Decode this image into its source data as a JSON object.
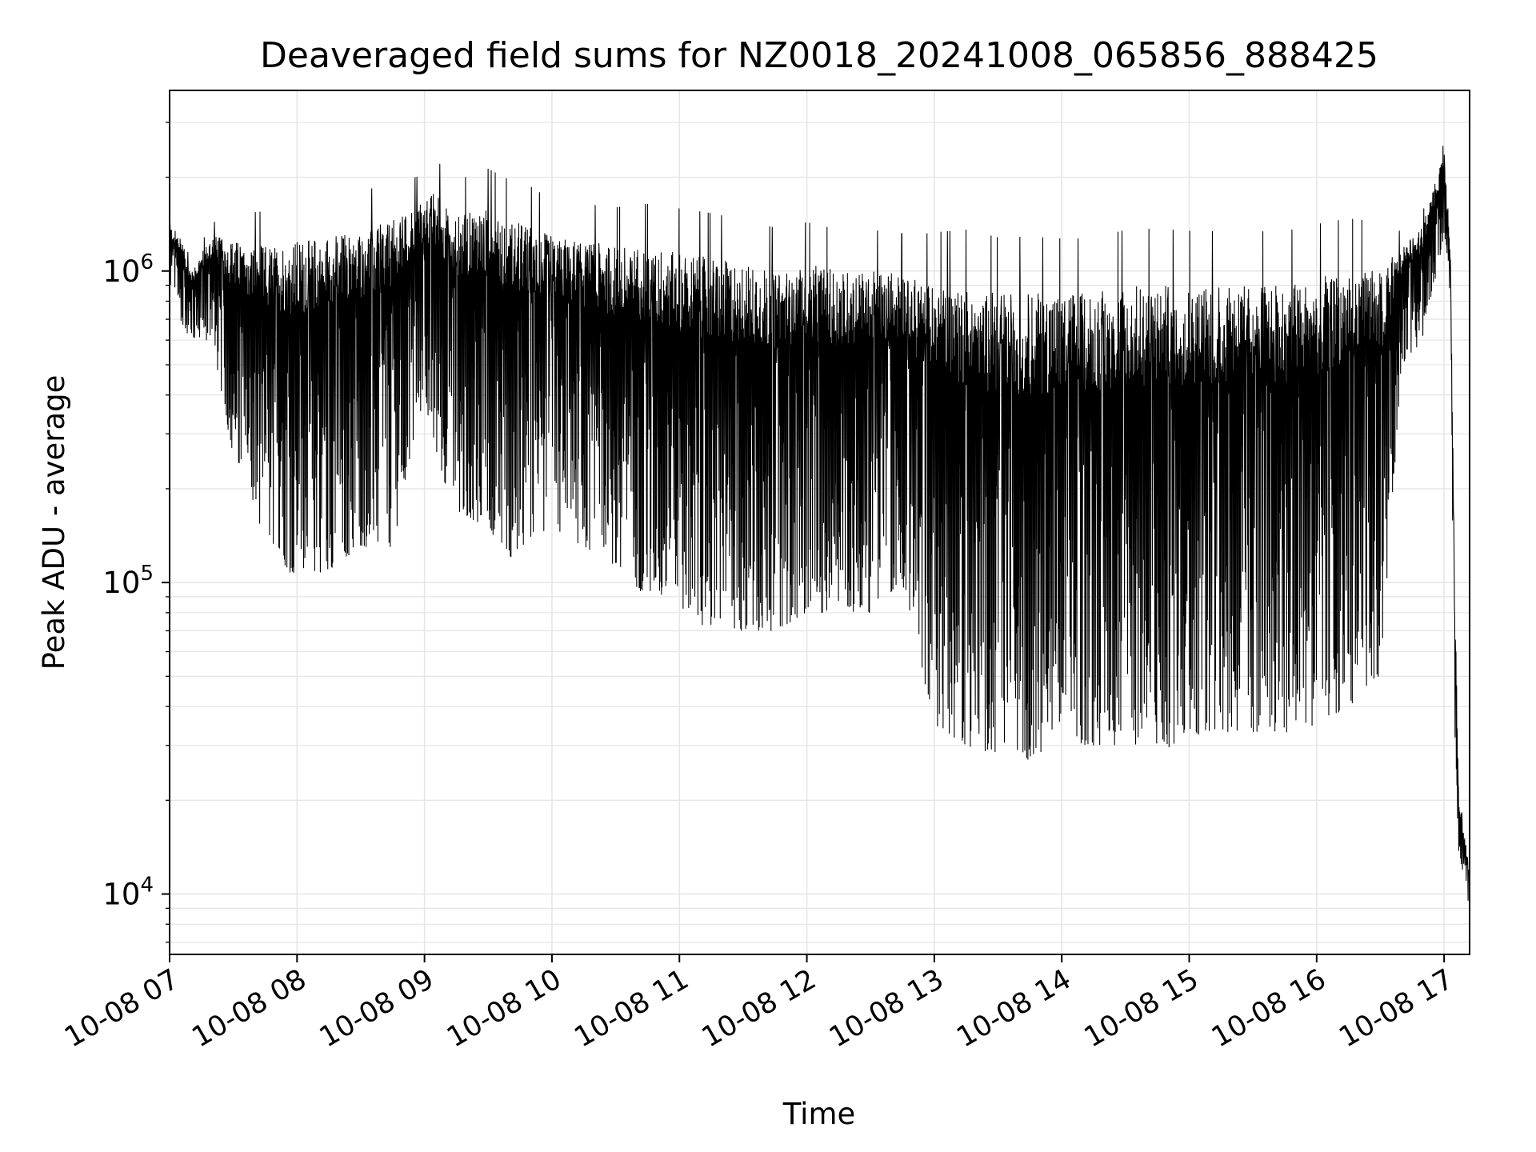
{
  "chart_data": {
    "type": "line",
    "title": "Deaveraged field sums for NZ0018_20241008_065856_888425",
    "xlabel": "Time",
    "ylabel": "Peak ADU - average",
    "yscale": "log",
    "ylim": [
      6400,
      3800000
    ],
    "xlim": [
      "10-08 07:00",
      "10-08 17:12"
    ],
    "grid": true,
    "line_color": "#000000",
    "grid_color": "#e6e6e6",
    "x_ticks": [
      "10-08 07",
      "10-08 08",
      "10-08 09",
      "10-08 10",
      "10-08 11",
      "10-08 12",
      "10-08 13",
      "10-08 14",
      "10-08 15",
      "10-08 16",
      "10-08 17"
    ],
    "y_ticks": [
      {
        "value": 10000,
        "base": "10",
        "exp": "4"
      },
      {
        "value": 100000,
        "base": "10",
        "exp": "5"
      },
      {
        "value": 1000000,
        "base": "10",
        "exp": "6"
      }
    ],
    "series": [
      {
        "description": "Dense signal: each sample oscillates between an upper envelope and a lower envelope (in ADU) at the listed times.",
        "envelope": {
          "time": [
            "07:00",
            "07:05",
            "07:10",
            "07:20",
            "07:30",
            "07:45",
            "08:00",
            "08:15",
            "08:30",
            "08:45",
            "09:00",
            "09:05",
            "09:15",
            "09:30",
            "09:40",
            "09:50",
            "10:00",
            "10:15",
            "10:30",
            "10:45",
            "11:00",
            "11:15",
            "11:30",
            "11:45",
            "12:00",
            "12:15",
            "12:30",
            "12:45",
            "12:50",
            "13:00",
            "13:15",
            "13:30",
            "13:45",
            "14:00",
            "14:15",
            "14:30",
            "14:45",
            "15:00",
            "15:15",
            "15:30",
            "15:45",
            "16:00",
            "16:15",
            "16:30",
            "16:40",
            "16:50",
            "17:00",
            "17:03",
            "17:05",
            "17:07",
            "17:12"
          ],
          "upper": [
            1400000,
            1300000,
            1000000,
            1300000,
            1250000,
            1200000,
            1250000,
            1300000,
            1350000,
            1450000,
            1700000,
            1800000,
            1500000,
            1600000,
            1450000,
            1400000,
            1300000,
            1250000,
            1200000,
            1200000,
            1150000,
            1100000,
            1050000,
            1000000,
            1050000,
            1000000,
            1000000,
            1000000,
            950000,
            900000,
            900000,
            850000,
            850000,
            850000,
            850000,
            900000,
            900000,
            900000,
            900000,
            900000,
            900000,
            950000,
            1000000,
            1000000,
            1200000,
            1400000,
            2400000,
            1100000,
            100000,
            20000,
            12000
          ],
          "lower": [
            900000,
            700000,
            600000,
            600000,
            250000,
            140000,
            100000,
            110000,
            130000,
            130000,
            400000,
            250000,
            170000,
            150000,
            120000,
            130000,
            150000,
            130000,
            110000,
            90000,
            80000,
            70000,
            70000,
            70000,
            80000,
            80000,
            80000,
            100000,
            70000,
            35000,
            30000,
            28000,
            27000,
            30000,
            30000,
            30000,
            28000,
            32000,
            33000,
            33000,
            33000,
            35000,
            40000,
            50000,
            500000,
            600000,
            1300000,
            800000,
            30000,
            13000,
            9000
          ]
        }
      }
    ]
  }
}
